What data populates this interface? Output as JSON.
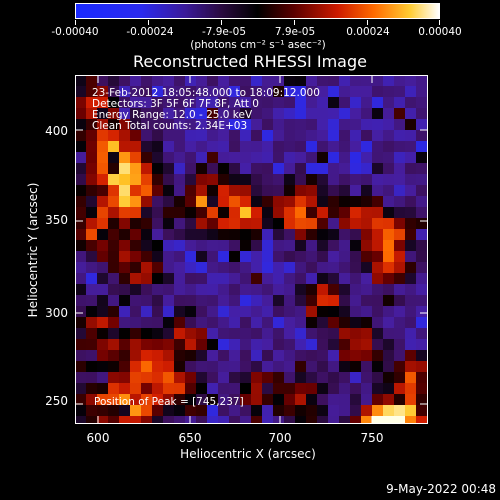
{
  "colorbar": {
    "tick_labels": [
      "-0.00040",
      "-0.00024",
      "-7.9e-05",
      "7.9e-05",
      "0.00024",
      "0.00040"
    ],
    "units": "(photons cm⁻² s⁻¹ asec⁻²)",
    "range": [
      -0.0004,
      0.0004
    ]
  },
  "title": "Reconstructed RHESSI Image",
  "overlay": {
    "time": "23-Feb-2012 18:05:48.000 to 18:09:12.000",
    "detectors": "Detectors: 3F 5F 6F 7F 8F, Att 0",
    "energy": "Energy Range: 12.0 - 25.0 keV",
    "clean": "Clean     Total counts: 2.34E+03",
    "peak": "Position of Peak = [745,237]"
  },
  "axes": {
    "xlabel": "Heliocentric X (arcsec)",
    "ylabel": "Heliocentric Y (arcsec)",
    "xticks": [
      "600",
      "650",
      "700",
      "750"
    ],
    "yticks": [
      "400",
      "350",
      "300",
      "250"
    ],
    "xrange": [
      588,
      780
    ],
    "yrange": [
      233,
      424
    ]
  },
  "timestamp": "9-May-2022 00:48"
}
